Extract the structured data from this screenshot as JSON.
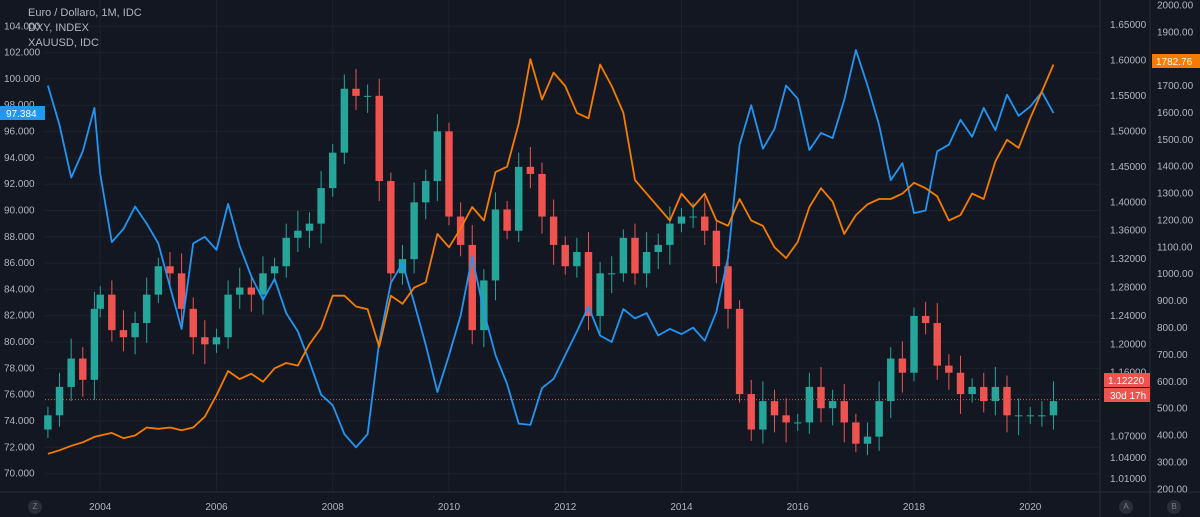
{
  "legend": {
    "line1": "Euro / Dollaro, 1M, IDC",
    "line2": "DXY, INDEX",
    "line3": "XAUUSD, IDC"
  },
  "badges": {
    "dxy_value": "97.384",
    "gold_value": "1782.76",
    "eur_value": "1.12220",
    "countdown": "30d 17h"
  },
  "buttons": {
    "z": "Z",
    "a": "A",
    "b": "B"
  },
  "colors": {
    "background": "#131722",
    "dxy": "#2196f3",
    "gold": "#f57c00",
    "up": "#26a69a",
    "down": "#ef5350",
    "price_line": "#ef5350"
  },
  "chart_data": {
    "type": "candlestick-with-lines",
    "timeframe": "1M",
    "x_ticks": [
      "2004",
      "2006",
      "2008",
      "2010",
      "2012",
      "2014",
      "2016",
      "2018",
      "2020"
    ],
    "x_range": [
      2003.05,
      2021.2
    ],
    "axes": {
      "dxy": {
        "range": [
          68.6,
          106.0
        ],
        "ticks": [
          "70.000",
          "72.000",
          "74.000",
          "76.000",
          "78.000",
          "80.000",
          "82.000",
          "84.000",
          "86.000",
          "88.000",
          "90.000",
          "92.000",
          "94.000",
          "96.000",
          "98.000",
          "100.000",
          "102.000",
          "104.000"
        ]
      },
      "eurusd": {
        "range": [
          0.992,
          1.685
        ],
        "ticks": [
          "1.01000",
          "1.04000",
          "1.07000",
          "1.16000",
          "1.20000",
          "1.24000",
          "1.28000",
          "1.32000",
          "1.36000",
          "1.40000",
          "1.45000",
          "1.50000",
          "1.55000",
          "1.60000",
          "1.65000"
        ]
      },
      "gold": {
        "range": [
          190,
          2020
        ],
        "ticks": [
          "200.00",
          "300.00",
          "400.00",
          "500.00",
          "600.00",
          "700.00",
          "800.00",
          "900.00",
          "1000.00",
          "1100.00",
          "1200.00",
          "1300.00",
          "1400.00",
          "1500.00",
          "1600.00",
          "1700.00",
          "1800.00",
          "1900.00",
          "2000.00"
        ]
      }
    },
    "series": [
      {
        "name": "DXY, INDEX",
        "type": "line",
        "axis": "dxy",
        "points": [
          [
            2003.1,
            99.5
          ],
          [
            2003.3,
            96.5
          ],
          [
            2003.5,
            92.5
          ],
          [
            2003.7,
            94.5
          ],
          [
            2003.9,
            97.8
          ],
          [
            2004.0,
            92.8
          ],
          [
            2004.2,
            87.6
          ],
          [
            2004.4,
            88.6
          ],
          [
            2004.6,
            90.3
          ],
          [
            2004.8,
            89.0
          ],
          [
            2005.0,
            87.5
          ],
          [
            2005.2,
            84.2
          ],
          [
            2005.4,
            81.0
          ],
          [
            2005.6,
            87.5
          ],
          [
            2005.8,
            88.0
          ],
          [
            2006.0,
            87.0
          ],
          [
            2006.2,
            90.5
          ],
          [
            2006.4,
            87.3
          ],
          [
            2006.6,
            85.0
          ],
          [
            2006.8,
            83.2
          ],
          [
            2007.0,
            84.8
          ],
          [
            2007.2,
            82.2
          ],
          [
            2007.4,
            80.8
          ],
          [
            2007.6,
            78.5
          ],
          [
            2007.8,
            76.0
          ],
          [
            2008.0,
            75.2
          ],
          [
            2008.2,
            73.0
          ],
          [
            2008.4,
            72.0
          ],
          [
            2008.6,
            73.0
          ],
          [
            2008.8,
            80.0
          ],
          [
            2009.0,
            84.5
          ],
          [
            2009.2,
            86.0
          ],
          [
            2009.4,
            83.0
          ],
          [
            2009.6,
            79.8
          ],
          [
            2009.8,
            76.2
          ],
          [
            2010.0,
            79.0
          ],
          [
            2010.2,
            82.0
          ],
          [
            2010.4,
            86.5
          ],
          [
            2010.6,
            82.3
          ],
          [
            2010.8,
            79.0
          ],
          [
            2011.0,
            76.8
          ],
          [
            2011.2,
            73.8
          ],
          [
            2011.4,
            73.7
          ],
          [
            2011.6,
            76.5
          ],
          [
            2011.8,
            77.2
          ],
          [
            2012.0,
            79.0
          ],
          [
            2012.2,
            80.8
          ],
          [
            2012.4,
            82.7
          ],
          [
            2012.6,
            80.5
          ],
          [
            2012.8,
            80.0
          ],
          [
            2013.0,
            82.5
          ],
          [
            2013.2,
            81.8
          ],
          [
            2013.4,
            82.2
          ],
          [
            2013.6,
            80.5
          ],
          [
            2013.8,
            81.0
          ],
          [
            2014.0,
            80.6
          ],
          [
            2014.2,
            81.1
          ],
          [
            2014.4,
            80.1
          ],
          [
            2014.6,
            82.3
          ],
          [
            2014.8,
            86.4
          ],
          [
            2015.0,
            95.0
          ],
          [
            2015.2,
            98.0
          ],
          [
            2015.4,
            94.7
          ],
          [
            2015.6,
            96.2
          ],
          [
            2015.8,
            99.5
          ],
          [
            2016.0,
            98.5
          ],
          [
            2016.2,
            94.6
          ],
          [
            2016.4,
            95.9
          ],
          [
            2016.6,
            95.5
          ],
          [
            2016.8,
            98.4
          ],
          [
            2017.0,
            102.2
          ],
          [
            2017.2,
            99.5
          ],
          [
            2017.4,
            96.5
          ],
          [
            2017.6,
            92.3
          ],
          [
            2017.8,
            93.6
          ],
          [
            2018.0,
            89.8
          ],
          [
            2018.2,
            90.0
          ],
          [
            2018.4,
            94.5
          ],
          [
            2018.6,
            95.0
          ],
          [
            2018.8,
            96.9
          ],
          [
            2019.0,
            95.6
          ],
          [
            2019.2,
            97.8
          ],
          [
            2019.4,
            96.1
          ],
          [
            2019.6,
            98.8
          ],
          [
            2019.8,
            97.2
          ],
          [
            2020.0,
            97.9
          ],
          [
            2020.2,
            99.0
          ],
          [
            2020.4,
            97.4
          ]
        ]
      },
      {
        "name": "XAUUSD, IDC",
        "type": "line",
        "axis": "gold",
        "points": [
          [
            2003.1,
            332
          ],
          [
            2003.3,
            345
          ],
          [
            2003.5,
            362
          ],
          [
            2003.7,
            375
          ],
          [
            2003.9,
            395
          ],
          [
            2004.0,
            400
          ],
          [
            2004.2,
            410
          ],
          [
            2004.4,
            390
          ],
          [
            2004.6,
            400
          ],
          [
            2004.8,
            430
          ],
          [
            2005.0,
            425
          ],
          [
            2005.2,
            430
          ],
          [
            2005.4,
            420
          ],
          [
            2005.6,
            430
          ],
          [
            2005.8,
            470
          ],
          [
            2006.0,
            550
          ],
          [
            2006.2,
            640
          ],
          [
            2006.4,
            610
          ],
          [
            2006.6,
            630
          ],
          [
            2006.8,
            600
          ],
          [
            2007.0,
            650
          ],
          [
            2007.2,
            670
          ],
          [
            2007.4,
            660
          ],
          [
            2007.6,
            740
          ],
          [
            2007.8,
            800
          ],
          [
            2008.0,
            920
          ],
          [
            2008.2,
            920
          ],
          [
            2008.4,
            880
          ],
          [
            2008.6,
            870
          ],
          [
            2008.8,
            730
          ],
          [
            2009.0,
            920
          ],
          [
            2009.2,
            890
          ],
          [
            2009.4,
            950
          ],
          [
            2009.6,
            970
          ],
          [
            2009.8,
            1150
          ],
          [
            2010.0,
            1100
          ],
          [
            2010.2,
            1170
          ],
          [
            2010.4,
            1250
          ],
          [
            2010.6,
            1200
          ],
          [
            2010.8,
            1380
          ],
          [
            2011.0,
            1400
          ],
          [
            2011.2,
            1560
          ],
          [
            2011.4,
            1800
          ],
          [
            2011.6,
            1650
          ],
          [
            2011.8,
            1750
          ],
          [
            2012.0,
            1700
          ],
          [
            2012.2,
            1600
          ],
          [
            2012.4,
            1580
          ],
          [
            2012.6,
            1780
          ],
          [
            2012.8,
            1700
          ],
          [
            2013.0,
            1600
          ],
          [
            2013.2,
            1350
          ],
          [
            2013.4,
            1300
          ],
          [
            2013.6,
            1250
          ],
          [
            2013.8,
            1200
          ],
          [
            2014.0,
            1300
          ],
          [
            2014.2,
            1250
          ],
          [
            2014.4,
            1300
          ],
          [
            2014.6,
            1200
          ],
          [
            2014.8,
            1180
          ],
          [
            2015.0,
            1280
          ],
          [
            2015.2,
            1200
          ],
          [
            2015.4,
            1180
          ],
          [
            2015.6,
            1100
          ],
          [
            2015.8,
            1060
          ],
          [
            2016.0,
            1120
          ],
          [
            2016.2,
            1250
          ],
          [
            2016.4,
            1320
          ],
          [
            2016.6,
            1270
          ],
          [
            2016.8,
            1150
          ],
          [
            2017.0,
            1220
          ],
          [
            2017.2,
            1260
          ],
          [
            2017.4,
            1280
          ],
          [
            2017.6,
            1280
          ],
          [
            2017.8,
            1300
          ],
          [
            2018.0,
            1340
          ],
          [
            2018.2,
            1320
          ],
          [
            2018.4,
            1290
          ],
          [
            2018.6,
            1200
          ],
          [
            2018.8,
            1220
          ],
          [
            2019.0,
            1300
          ],
          [
            2019.2,
            1280
          ],
          [
            2019.4,
            1420
          ],
          [
            2019.6,
            1500
          ],
          [
            2019.8,
            1470
          ],
          [
            2020.0,
            1580
          ],
          [
            2020.2,
            1680
          ],
          [
            2020.4,
            1780
          ]
        ]
      },
      {
        "name": "Euro / Dollaro, 1M, IDC",
        "type": "candlestick",
        "axis": "eurusd",
        "closes": [
          [
            2003.1,
            1.1
          ],
          [
            2003.3,
            1.14
          ],
          [
            2003.5,
            1.18
          ],
          [
            2003.7,
            1.15
          ],
          [
            2003.9,
            1.25
          ],
          [
            2004.0,
            1.27
          ],
          [
            2004.2,
            1.22
          ],
          [
            2004.4,
            1.21
          ],
          [
            2004.6,
            1.23
          ],
          [
            2004.8,
            1.27
          ],
          [
            2005.0,
            1.31
          ],
          [
            2005.2,
            1.3
          ],
          [
            2005.4,
            1.25
          ],
          [
            2005.6,
            1.21
          ],
          [
            2005.8,
            1.2
          ],
          [
            2006.0,
            1.21
          ],
          [
            2006.2,
            1.27
          ],
          [
            2006.4,
            1.28
          ],
          [
            2006.6,
            1.27
          ],
          [
            2006.8,
            1.3
          ],
          [
            2007.0,
            1.31
          ],
          [
            2007.2,
            1.35
          ],
          [
            2007.4,
            1.36
          ],
          [
            2007.6,
            1.37
          ],
          [
            2007.8,
            1.42
          ],
          [
            2008.0,
            1.47
          ],
          [
            2008.2,
            1.56
          ],
          [
            2008.4,
            1.55
          ],
          [
            2008.6,
            1.55
          ],
          [
            2008.8,
            1.43
          ],
          [
            2009.0,
            1.3
          ],
          [
            2009.2,
            1.32
          ],
          [
            2009.4,
            1.4
          ],
          [
            2009.6,
            1.43
          ],
          [
            2009.8,
            1.5
          ],
          [
            2010.0,
            1.38
          ],
          [
            2010.2,
            1.34
          ],
          [
            2010.4,
            1.22
          ],
          [
            2010.6,
            1.29
          ],
          [
            2010.8,
            1.39
          ],
          [
            2011.0,
            1.36
          ],
          [
            2011.2,
            1.45
          ],
          [
            2011.4,
            1.44
          ],
          [
            2011.6,
            1.38
          ],
          [
            2011.8,
            1.34
          ],
          [
            2012.0,
            1.31
          ],
          [
            2012.2,
            1.33
          ],
          [
            2012.4,
            1.24
          ],
          [
            2012.6,
            1.3
          ],
          [
            2012.8,
            1.3
          ],
          [
            2013.0,
            1.35
          ],
          [
            2013.2,
            1.3
          ],
          [
            2013.4,
            1.33
          ],
          [
            2013.6,
            1.34
          ],
          [
            2013.8,
            1.37
          ],
          [
            2014.0,
            1.38
          ],
          [
            2014.2,
            1.38
          ],
          [
            2014.4,
            1.36
          ],
          [
            2014.6,
            1.31
          ],
          [
            2014.8,
            1.25
          ],
          [
            2015.0,
            1.13
          ],
          [
            2015.2,
            1.08
          ],
          [
            2015.4,
            1.12
          ],
          [
            2015.6,
            1.1
          ],
          [
            2015.8,
            1.09
          ],
          [
            2016.0,
            1.09
          ],
          [
            2016.2,
            1.14
          ],
          [
            2016.4,
            1.11
          ],
          [
            2016.6,
            1.12
          ],
          [
            2016.8,
            1.09
          ],
          [
            2017.0,
            1.06
          ],
          [
            2017.2,
            1.07
          ],
          [
            2017.4,
            1.12
          ],
          [
            2017.6,
            1.18
          ],
          [
            2017.8,
            1.16
          ],
          [
            2018.0,
            1.24
          ],
          [
            2018.2,
            1.23
          ],
          [
            2018.4,
            1.17
          ],
          [
            2018.6,
            1.16
          ],
          [
            2018.8,
            1.13
          ],
          [
            2019.0,
            1.14
          ],
          [
            2019.2,
            1.12
          ],
          [
            2019.4,
            1.14
          ],
          [
            2019.6,
            1.1
          ],
          [
            2019.8,
            1.1
          ],
          [
            2020.0,
            1.1
          ],
          [
            2020.2,
            1.1
          ],
          [
            2020.4,
            1.12
          ]
        ]
      }
    ],
    "last_price_line": 1.1222
  }
}
